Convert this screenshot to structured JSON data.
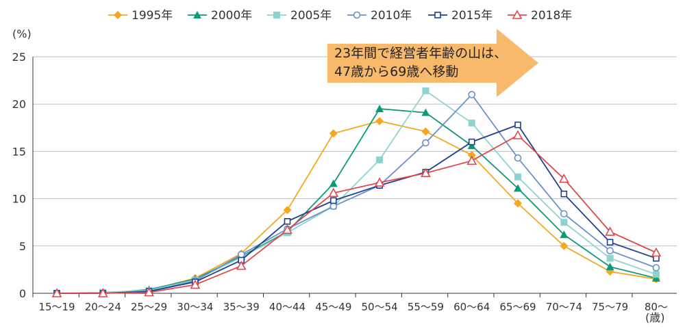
{
  "chart_data": {
    "type": "line",
    "ylabel": "(%)",
    "xlabel": "(歳)",
    "ylim": [
      0,
      25
    ],
    "yticks": [
      0,
      5,
      10,
      15,
      20,
      25
    ],
    "categories": [
      "15〜19",
      "20〜24",
      "25〜29",
      "30〜34",
      "35〜39",
      "40〜44",
      "45〜49",
      "50〜54",
      "55〜59",
      "60〜64",
      "65〜69",
      "70〜74",
      "75〜79",
      "80〜"
    ],
    "legend_position": "top",
    "series": [
      {
        "name": "1995年",
        "color": "#f5a623",
        "marker": "diamond",
        "values": [
          0,
          0,
          0.3,
          1.6,
          4.2,
          8.8,
          16.9,
          18.2,
          17.1,
          14.6,
          9.5,
          5.0,
          2.3,
          1.5
        ]
      },
      {
        "name": "2000年",
        "color": "#0a9a78",
        "marker": "triangle",
        "values": [
          0,
          0,
          0.4,
          1.5,
          3.9,
          6.5,
          11.6,
          19.5,
          19.1,
          15.6,
          11.1,
          6.2,
          2.8,
          1.6
        ]
      },
      {
        "name": "2005年",
        "color": "#8fd3cf",
        "marker": "square-filled",
        "values": [
          0,
          0.1,
          0.3,
          1.4,
          3.8,
          6.4,
          9.2,
          14.1,
          21.4,
          18.0,
          12.3,
          7.5,
          3.7,
          2.0
        ]
      },
      {
        "name": "2010年",
        "color": "#6b8fc8",
        "marker": "circle-open",
        "values": [
          0,
          0,
          0.2,
          1.3,
          4.1,
          6.8,
          9.2,
          11.4,
          15.9,
          21.0,
          14.3,
          8.4,
          4.5,
          2.7
        ]
      },
      {
        "name": "2015年",
        "color": "#1f3f8f",
        "marker": "square-open",
        "values": [
          0,
          0,
          0.2,
          1.2,
          3.5,
          7.6,
          9.8,
          11.4,
          12.8,
          16.0,
          17.8,
          10.5,
          5.4,
          3.7
        ]
      },
      {
        "name": "2018年",
        "color": "#e0474c",
        "marker": "triangle-open",
        "values": [
          0,
          0,
          0.1,
          0.9,
          2.9,
          6.7,
          10.6,
          11.7,
          12.7,
          14.0,
          16.7,
          12.1,
          6.5,
          4.3
        ]
      }
    ],
    "annotation": {
      "line1": "23年間で経営者年齢の山は、",
      "line2": "47歳から69歳へ移動",
      "fill": "#f9b96b"
    }
  }
}
